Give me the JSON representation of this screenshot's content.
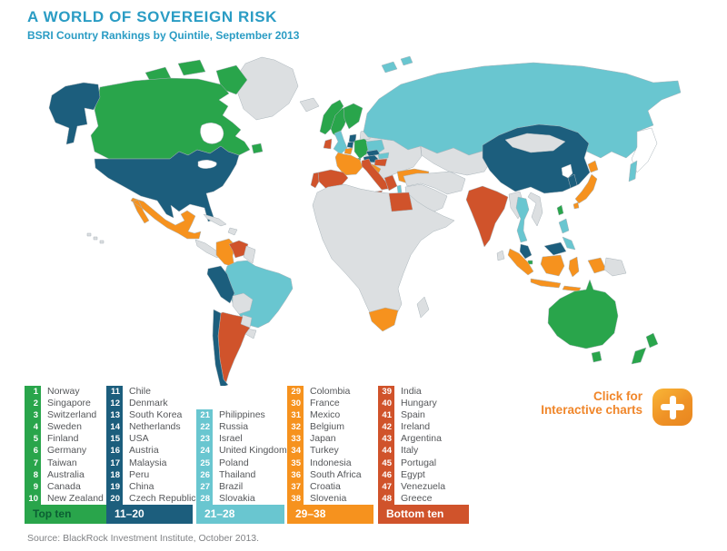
{
  "header": {
    "title": "A WORLD OF SOVEREIGN RISK",
    "subtitle": "BSRI Country Rankings by Quintile, September 2013"
  },
  "footer": {
    "source": "Source: BlackRock Investment Institute, October 2013."
  },
  "cta": {
    "line1": "Click for",
    "line2": "Interactive charts"
  },
  "colors": {
    "title": "#2a9cc4",
    "label_text": "#55575a",
    "source_text": "#808285",
    "cta_text": "#f0862a",
    "ocean": "#ffffff",
    "border": "#a9b4ba",
    "quintiles": {
      "0": "#dcdfe1",
      "1": "#29a54b",
      "2": "#1c5e7d",
      "3": "#69c6d0",
      "4": "#f6921e",
      "5": "#d0532b",
      "w": "#ffffff"
    }
  },
  "legend": {
    "groups": [
      {
        "label": "Top ten",
        "quintile": "1",
        "label_color": "#0b5e33",
        "entries": [
          [
            "1",
            "Norway"
          ],
          [
            "2",
            "Singapore"
          ],
          [
            "3",
            "Switzerland"
          ],
          [
            "4",
            "Sweden"
          ],
          [
            "5",
            "Finland"
          ],
          [
            "6",
            "Germany"
          ],
          [
            "7",
            "Taiwan"
          ],
          [
            "8",
            "Australia"
          ],
          [
            "9",
            "Canada"
          ],
          [
            "10",
            "New Zealand"
          ]
        ]
      },
      {
        "label": "11–20",
        "quintile": "2",
        "label_color": "#ffffff",
        "entries": [
          [
            "11",
            "Chile"
          ],
          [
            "12",
            "Denmark"
          ],
          [
            "13",
            "South Korea"
          ],
          [
            "14",
            "Netherlands"
          ],
          [
            "15",
            "USA"
          ],
          [
            "16",
            "Austria"
          ],
          [
            "17",
            "Malaysia"
          ],
          [
            "18",
            "Peru"
          ],
          [
            "19",
            "China"
          ],
          [
            "20",
            "Czech Republic"
          ]
        ]
      },
      {
        "label": "21–28",
        "quintile": "3",
        "label_color": "#ffffff",
        "entries": [
          [
            "21",
            "Philippines"
          ],
          [
            "22",
            "Russia"
          ],
          [
            "23",
            "Israel"
          ],
          [
            "24",
            "United Kingdom"
          ],
          [
            "25",
            "Poland"
          ],
          [
            "26",
            "Thailand"
          ],
          [
            "27",
            "Brazil"
          ],
          [
            "28",
            "Slovakia"
          ]
        ]
      },
      {
        "label": "29–38",
        "quintile": "4",
        "label_color": "#ffffff",
        "entries": [
          [
            "29",
            "Colombia"
          ],
          [
            "30",
            "France"
          ],
          [
            "31",
            "Mexico"
          ],
          [
            "32",
            "Belgium"
          ],
          [
            "33",
            "Japan"
          ],
          [
            "34",
            "Turkey"
          ],
          [
            "35",
            "Indonesia"
          ],
          [
            "36",
            "South Africa"
          ],
          [
            "37",
            "Croatia"
          ],
          [
            "38",
            "Slovenia"
          ]
        ]
      },
      {
        "label": "Bottom ten",
        "quintile": "5",
        "label_color": "#ffffff",
        "entries": [
          [
            "39",
            "India"
          ],
          [
            "40",
            "Hungary"
          ],
          [
            "41",
            "Spain"
          ],
          [
            "42",
            "Ireland"
          ],
          [
            "43",
            "Argentina"
          ],
          [
            "44",
            "Italy"
          ],
          [
            "45",
            "Portugal"
          ],
          [
            "46",
            "Egypt"
          ],
          [
            "47",
            "Venezuela"
          ],
          [
            "48",
            "Greece"
          ]
        ]
      }
    ]
  },
  "map": {
    "regions": {
      "greenland": "0",
      "iceland": "0",
      "hawaii": "0",
      "canada": "1",
      "canada-arctic": "1",
      "newfoundland": "1",
      "alaska": "2",
      "usa": "2",
      "mexico": "4",
      "central-america": "0",
      "cuba": "0",
      "hispaniola": "0",
      "colombia": "4",
      "venezuela": "5",
      "guyanas": "0",
      "brazil": "3",
      "peru": "2",
      "bolivia": "0",
      "paraguay": "0",
      "uruguay": "0",
      "chile": "2",
      "tierra-del-fuego": "2",
      "argentina": "5",
      "falklands": "0",
      "norway": "1",
      "sweden": "1",
      "finland": "1",
      "denmark": "2",
      "baltics": "0",
      "uk": "3",
      "ireland": "5",
      "netherlands": "2",
      "belgium": "4",
      "germany": "1",
      "france": "4",
      "spain": "5",
      "portugal": "5",
      "switzerland": "1",
      "italy": "5",
      "austria": "2",
      "czech-republic": "2",
      "poland": "3",
      "slovakia": "3",
      "hungary": "5",
      "croatia-slovenia": "4",
      "greece": "5",
      "eastern-europe": "0",
      "turkey": "4",
      "israel": "3",
      "russia": "3",
      "svalbard": "3",
      "sakhalin": "3",
      "kamchatka": "w",
      "central-asia": "0",
      "middle-east": "0",
      "africa": "0",
      "egypt": "5",
      "south-africa": "4",
      "madagascar": "0",
      "china": "2",
      "mongolia": "0",
      "india": "5",
      "sri-lanka": "0",
      "indochina": "0",
      "thailand": "3",
      "malaysia": "2",
      "singapore": "1",
      "indonesia": "4",
      "papua-new-guinea": "0",
      "philippines": "3",
      "taiwan": "1",
      "north-korea": "w",
      "south-korea": "2",
      "japan": "4",
      "australia": "1",
      "new-zealand": "1",
      "hudson-bay": "w",
      "great-lakes": "w"
    }
  }
}
